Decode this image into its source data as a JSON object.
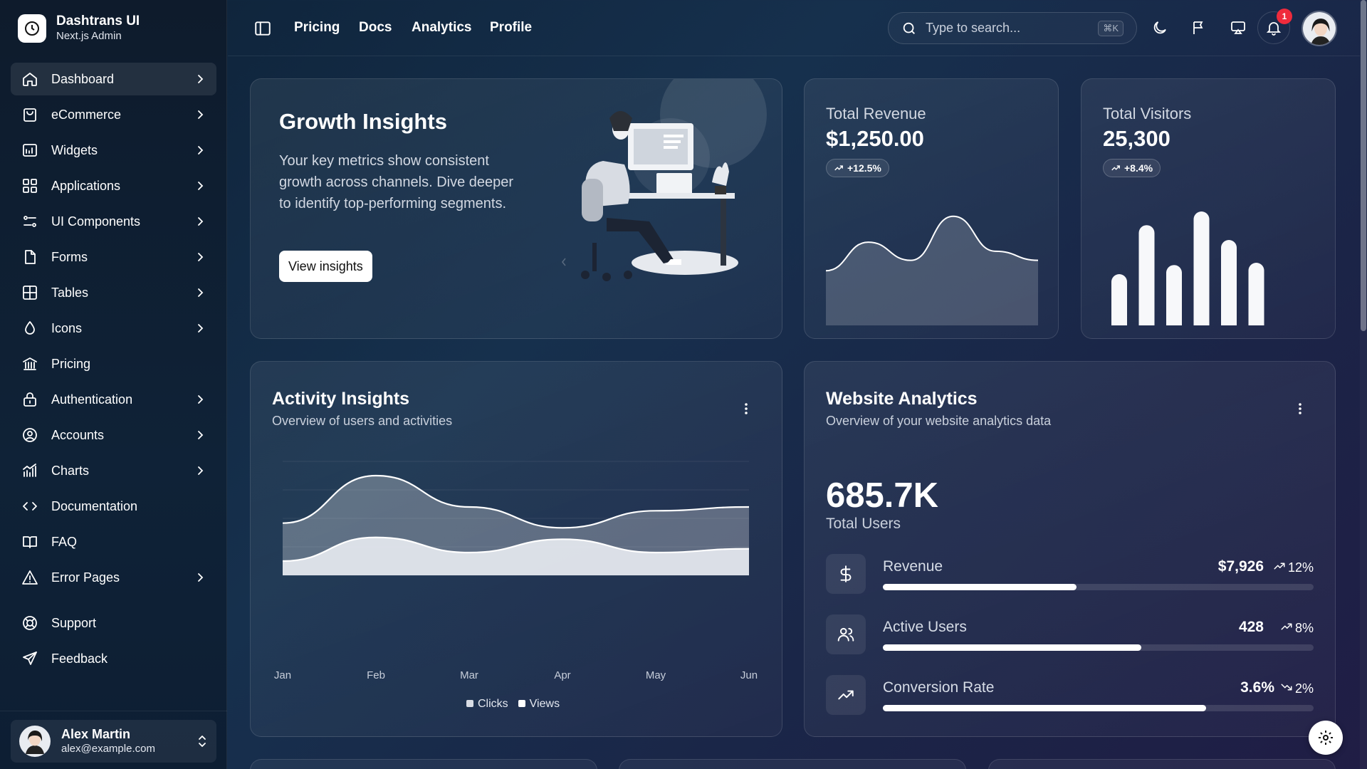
{
  "brand": {
    "title": "Dashtrans UI",
    "subtitle": "Next.js Admin",
    "logo_icon": "clock-icon"
  },
  "sidebar": {
    "items": [
      {
        "label": "Dashboard",
        "icon": "home-icon",
        "chevron": true,
        "active": true
      },
      {
        "label": "eCommerce",
        "icon": "shopping-bag-icon",
        "chevron": true
      },
      {
        "label": "Widgets",
        "icon": "widgets-icon",
        "chevron": true
      },
      {
        "label": "Applications",
        "icon": "grid-icon",
        "chevron": true
      },
      {
        "label": "UI Components",
        "icon": "components-icon",
        "chevron": true
      },
      {
        "label": "Forms",
        "icon": "file-icon",
        "chevron": true
      },
      {
        "label": "Tables",
        "icon": "table-icon",
        "chevron": true
      },
      {
        "label": "Icons",
        "icon": "droplet-icon",
        "chevron": true
      },
      {
        "label": "Pricing",
        "icon": "bank-icon",
        "chevron": false
      },
      {
        "label": "Authentication",
        "icon": "lock-icon",
        "chevron": true
      },
      {
        "label": "Accounts",
        "icon": "user-circle-icon",
        "chevron": true
      },
      {
        "label": "Charts",
        "icon": "chart-icon",
        "chevron": true
      },
      {
        "label": "Documentation",
        "icon": "code-icon",
        "chevron": false
      },
      {
        "label": "FAQ",
        "icon": "book-icon",
        "chevron": false
      },
      {
        "label": "Error Pages",
        "icon": "warning-icon",
        "chevron": true
      }
    ],
    "support": [
      {
        "label": "Support",
        "icon": "lifebuoy-icon"
      },
      {
        "label": "Feedback",
        "icon": "send-icon"
      }
    ],
    "user": {
      "name": "Alex Martin",
      "email": "alex@example.com"
    }
  },
  "header": {
    "links": [
      "Pricing",
      "Docs",
      "Analytics",
      "Profile"
    ],
    "search_placeholder": "Type to search...",
    "search_shortcut": "⌘K",
    "notification_count": "1"
  },
  "growth": {
    "title": "Growth Insights",
    "text": "Your key metrics show consistent growth across channels. Dive deeper to identify top-performing segments.",
    "button": "View insights"
  },
  "revenue": {
    "label": "Total Revenue",
    "value": "$1,250.00",
    "change": "+12.5%"
  },
  "visitors": {
    "label": "Total Visitors",
    "value": "25,300",
    "change": "+8.4%"
  },
  "activity": {
    "title": "Activity Insights",
    "subtitle": "Overview of users and activities"
  },
  "analytics": {
    "title": "Website Analytics",
    "subtitle": "Overview of your website analytics data",
    "value": "685.7K",
    "caption": "Total Users",
    "metrics": [
      {
        "label": "Revenue",
        "value": "$7,926",
        "change": "12%",
        "trend": "up",
        "progress": 0.45,
        "icon": "dollar-icon"
      },
      {
        "label": "Active Users",
        "value": "428",
        "change": "8%",
        "trend": "up",
        "progress": 0.6,
        "icon": "users-icon"
      },
      {
        "label": "Conversion Rate",
        "value": "3.6%",
        "change": "2%",
        "trend": "down",
        "progress": 0.75,
        "icon": "trending-up-icon"
      }
    ]
  },
  "chart_data": [
    {
      "type": "area",
      "x": [
        "Jan",
        "Feb",
        "Mar",
        "Apr",
        "May",
        "Jun"
      ],
      "series": [
        {
          "name": "Clicks",
          "values": [
            55,
            105,
            72,
            50,
            68,
            72
          ]
        },
        {
          "name": "Views",
          "values": [
            15,
            40,
            24,
            38,
            24,
            28
          ]
        }
      ],
      "ylim": [
        0,
        120
      ],
      "legend": "bottom-center",
      "colors": {
        "Clicks": "#d9dde5",
        "Views": "#ffffff"
      }
    },
    {
      "type": "area",
      "series": [
        {
          "values": [
            40,
            62,
            48,
            82,
            55,
            48
          ]
        }
      ]
    },
    {
      "type": "bar",
      "series": [
        {
          "values": [
            45,
            88,
            53,
            100,
            75,
            55
          ]
        }
      ]
    }
  ],
  "colors": {
    "accent": "#ffffff",
    "badge": "#ef2b3c",
    "background": "#16304d"
  }
}
